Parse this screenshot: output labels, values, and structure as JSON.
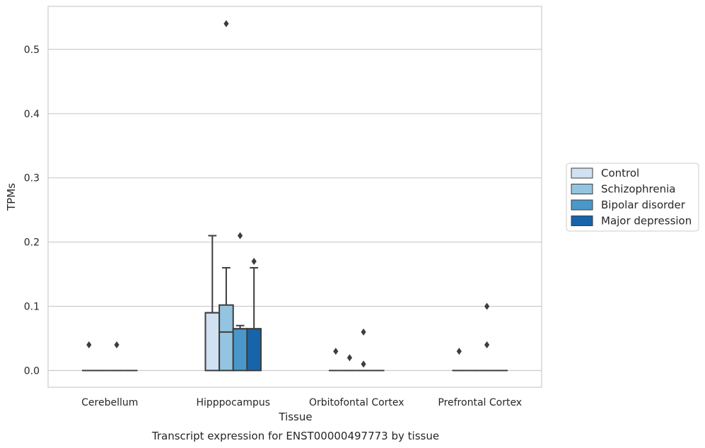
{
  "chart_data": {
    "type": "box",
    "title": "",
    "caption": "Transcript expression for ENST00000497773 by tissue",
    "xlabel": "Tissue",
    "ylabel": "TPMs",
    "ylim": [
      -0.026,
      0.567
    ],
    "yticks": [
      "0.0",
      "0.1",
      "0.2",
      "0.3",
      "0.4",
      "0.5"
    ],
    "grid": "horizontal",
    "legend_position": "right",
    "categories": [
      "Cerebellum",
      "Hipppocampus",
      "Orbitofontal Cortex",
      "Prefrontal Cortex"
    ],
    "series": [
      {
        "name": "Control",
        "color": "#d0e1f2",
        "boxes": [
          {
            "whislo": 0,
            "q1": 0,
            "med": 0,
            "q3": 0,
            "whishi": 0,
            "fliers": [
              0.04
            ]
          },
          {
            "whislo": 0,
            "q1": 0,
            "med": 0.09,
            "q3": 0.09,
            "whishi": 0.21,
            "fliers": []
          },
          {
            "whislo": 0,
            "q1": 0,
            "med": 0,
            "q3": 0,
            "whishi": 0,
            "fliers": [
              0.03
            ]
          },
          {
            "whislo": 0,
            "q1": 0,
            "med": 0,
            "q3": 0,
            "whishi": 0,
            "fliers": [
              0.03
            ]
          }
        ]
      },
      {
        "name": "Schizophrenia",
        "color": "#94c4df",
        "boxes": [
          {
            "whislo": 0,
            "q1": 0,
            "med": 0,
            "q3": 0,
            "whishi": 0,
            "fliers": []
          },
          {
            "whislo": 0,
            "q1": 0,
            "med": 0.06,
            "q3": 0.102,
            "whishi": 0.16,
            "fliers": [
              0.54
            ]
          },
          {
            "whislo": 0,
            "q1": 0,
            "med": 0,
            "q3": 0,
            "whishi": 0,
            "fliers": [
              0.02
            ]
          },
          {
            "whislo": 0,
            "q1": 0,
            "med": 0,
            "q3": 0,
            "whishi": 0,
            "fliers": []
          }
        ]
      },
      {
        "name": "Bipolar disorder",
        "color": "#4a98c9",
        "boxes": [
          {
            "whislo": 0,
            "q1": 0,
            "med": 0,
            "q3": 0,
            "whishi": 0,
            "fliers": [
              0.04
            ]
          },
          {
            "whislo": 0,
            "q1": 0,
            "med": 0.065,
            "q3": 0.065,
            "whishi": 0.07,
            "fliers": [
              0.21
            ]
          },
          {
            "whislo": 0,
            "q1": 0,
            "med": 0,
            "q3": 0,
            "whishi": 0,
            "fliers": [
              0.06,
              0.01
            ]
          },
          {
            "whislo": 0,
            "q1": 0,
            "med": 0,
            "q3": 0,
            "whishi": 0,
            "fliers": [
              0.1,
              0.04
            ]
          }
        ]
      },
      {
        "name": "Major depression",
        "color": "#1764ab",
        "boxes": [
          {
            "whislo": 0,
            "q1": 0,
            "med": 0,
            "q3": 0,
            "whishi": 0,
            "fliers": []
          },
          {
            "whislo": 0,
            "q1": 0,
            "med": 0.065,
            "q3": 0.065,
            "whishi": 0.16,
            "fliers": [
              0.17
            ]
          },
          {
            "whislo": 0,
            "q1": 0,
            "med": 0,
            "q3": 0,
            "whishi": 0,
            "fliers": []
          },
          {
            "whislo": 0,
            "q1": 0,
            "med": 0,
            "q3": 0,
            "whishi": 0,
            "fliers": []
          }
        ]
      }
    ]
  },
  "colors": {
    "grid": "#cccccc",
    "frame": "#cccccc",
    "box_edge": "#3d3d3d",
    "text": "#262626"
  }
}
